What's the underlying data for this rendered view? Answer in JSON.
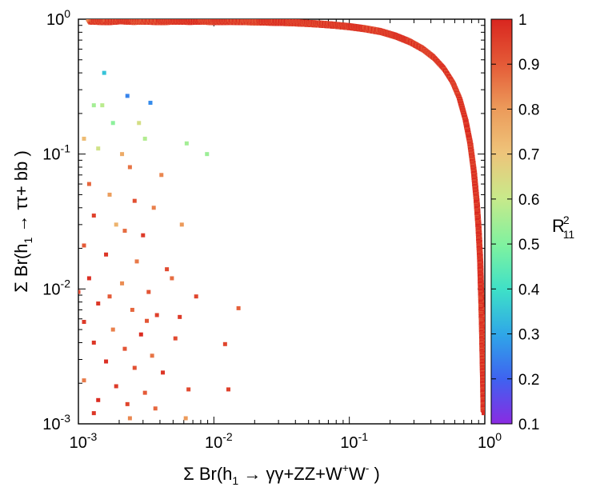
{
  "chart_data": {
    "type": "scatter",
    "x_scale": "log",
    "y_scale": "log",
    "xlim": [
      0.001,
      1
    ],
    "ylim": [
      0.001,
      1
    ],
    "xlabel": {
      "prefix": "Σ Br(h",
      "sub": "1",
      "middle": " → γγ+ZZ+W",
      "sup1": "+",
      "w2": "W",
      "sup2": "-",
      "suffix": " )"
    },
    "ylabel": {
      "prefix": "Σ Br(h",
      "sub": "1",
      "suffix": " → ττ+ bb )"
    },
    "x_ticks": [
      {
        "value": 0.001,
        "base": "10",
        "exp": "-3"
      },
      {
        "value": 0.01,
        "base": "10",
        "exp": "-2"
      },
      {
        "value": 0.1,
        "base": "10",
        "exp": "-1"
      },
      {
        "value": 1,
        "base": "10",
        "exp": "0"
      }
    ],
    "y_ticks": [
      {
        "value": 0.001,
        "base": "10",
        "exp": "-3"
      },
      {
        "value": 0.01,
        "base": "10",
        "exp": "-2"
      },
      {
        "value": 0.1,
        "base": "10",
        "exp": "-1"
      },
      {
        "value": 1,
        "base": "10",
        "exp": "0"
      }
    ],
    "colorbar": {
      "label_base": "R",
      "label_sub": "11",
      "label_sup": "2",
      "range": [
        0.1,
        1
      ],
      "ticks": [
        "0.1",
        "0.2",
        "0.3",
        "0.4",
        "0.5",
        "0.6",
        "0.7",
        "0.8",
        "0.9",
        "1"
      ],
      "palette": [
        "#8a2be2",
        "#3f62f0",
        "#2fa6e8",
        "#3ee0c8",
        "#7ef2a0",
        "#c9e98a",
        "#eec47a",
        "#ec9a5a",
        "#e45a37",
        "#d9261f"
      ]
    },
    "series": [
      {
        "name": "band",
        "description_free": true,
        "points": [
          [
            0.0012,
            0.97,
            0.97
          ],
          [
            0.0016,
            0.96,
            0.92
          ],
          [
            0.002,
            0.975,
            0.98
          ],
          [
            0.0025,
            0.965,
            0.95
          ],
          [
            0.003,
            0.97,
            0.9
          ],
          [
            0.004,
            0.96,
            0.97
          ],
          [
            0.005,
            0.97,
            0.94
          ],
          [
            0.0065,
            0.965,
            0.99
          ],
          [
            0.008,
            0.97,
            0.96
          ],
          [
            0.01,
            0.96,
            0.93
          ],
          [
            0.013,
            0.965,
            0.98
          ],
          [
            0.017,
            0.96,
            0.91
          ],
          [
            0.022,
            0.955,
            0.97
          ],
          [
            0.028,
            0.95,
            0.95
          ],
          [
            0.035,
            0.945,
            0.99
          ],
          [
            0.045,
            0.935,
            0.92
          ],
          [
            0.06,
            0.92,
            0.97
          ],
          [
            0.075,
            0.905,
            0.94
          ],
          [
            0.1,
            0.88,
            0.98
          ],
          [
            0.13,
            0.85,
            0.96
          ],
          [
            0.17,
            0.81,
            0.93
          ],
          [
            0.22,
            0.75,
            0.99
          ],
          [
            0.28,
            0.68,
            0.95
          ],
          [
            0.35,
            0.6,
            0.97
          ],
          [
            0.42,
            0.52,
            0.92
          ],
          [
            0.5,
            0.43,
            0.98
          ],
          [
            0.58,
            0.34,
            0.96
          ],
          [
            0.65,
            0.26,
            0.94
          ],
          [
            0.72,
            0.18,
            0.99
          ],
          [
            0.78,
            0.12,
            0.97
          ],
          [
            0.83,
            0.075,
            0.95
          ],
          [
            0.87,
            0.045,
            0.98
          ],
          [
            0.9,
            0.028,
            0.96
          ],
          [
            0.925,
            0.016,
            0.99
          ],
          [
            0.94,
            0.009,
            0.97
          ],
          [
            0.955,
            0.005,
            0.95
          ],
          [
            0.965,
            0.003,
            0.98
          ],
          [
            0.975,
            0.0018,
            0.96
          ],
          [
            0.98,
            0.0012,
            0.99
          ]
        ]
      },
      {
        "name": "scattered",
        "points": [
          [
            0.00155,
            0.4,
            0.35
          ],
          [
            0.0023,
            0.27,
            0.25
          ],
          [
            0.0034,
            0.24,
            0.26
          ],
          [
            0.0013,
            0.23,
            0.55
          ],
          [
            0.0015,
            0.23,
            0.58
          ],
          [
            0.0018,
            0.17,
            0.52
          ],
          [
            0.0028,
            0.17,
            0.63
          ],
          [
            0.0031,
            0.13,
            0.57
          ],
          [
            0.0063,
            0.12,
            0.55
          ],
          [
            0.0089,
            0.1,
            0.54
          ],
          [
            0.0011,
            0.13,
            0.72
          ],
          [
            0.0014,
            0.11,
            0.62
          ],
          [
            0.0021,
            0.1,
            0.76
          ],
          [
            0.0024,
            0.08,
            0.86
          ],
          [
            0.0041,
            0.07,
            0.83
          ],
          [
            0.0012,
            0.06,
            0.88
          ],
          [
            0.0017,
            0.05,
            0.79
          ],
          [
            0.0026,
            0.045,
            0.92
          ],
          [
            0.0036,
            0.04,
            0.84
          ],
          [
            0.0013,
            0.035,
            0.95
          ],
          [
            0.0019,
            0.03,
            0.74
          ],
          [
            0.0022,
            0.027,
            0.87
          ],
          [
            0.003,
            0.025,
            0.96
          ],
          [
            0.0058,
            0.03,
            0.8
          ],
          [
            0.0011,
            0.021,
            0.9
          ],
          [
            0.0016,
            0.018,
            0.97
          ],
          [
            0.0027,
            0.016,
            0.85
          ],
          [
            0.0045,
            0.014,
            0.93
          ],
          [
            0.0012,
            0.012,
            0.98
          ],
          [
            0.0021,
            0.011,
            0.82
          ],
          [
            0.0033,
            0.0095,
            0.91
          ],
          [
            0.0074,
            0.0088,
            0.94
          ],
          [
            0.0014,
            0.0078,
            0.97
          ],
          [
            0.0025,
            0.007,
            0.88
          ],
          [
            0.0038,
            0.0064,
            0.95
          ],
          [
            0.0152,
            0.0072,
            0.89
          ],
          [
            0.0011,
            0.0057,
            0.96
          ],
          [
            0.0018,
            0.005,
            0.84
          ],
          [
            0.0029,
            0.0046,
            0.99
          ],
          [
            0.0052,
            0.0043,
            0.93
          ],
          [
            0.0013,
            0.004,
            0.97
          ],
          [
            0.0022,
            0.0036,
            0.91
          ],
          [
            0.0035,
            0.0032,
            0.86
          ],
          [
            0.0121,
            0.0039,
            0.94
          ],
          [
            0.0016,
            0.0029,
            0.98
          ],
          [
            0.0026,
            0.0026,
            0.92
          ],
          [
            0.0042,
            0.0024,
            0.97
          ],
          [
            0.0011,
            0.0021,
            0.85
          ],
          [
            0.0019,
            0.0019,
            0.96
          ],
          [
            0.0031,
            0.0017,
            0.9
          ],
          [
            0.0065,
            0.0018,
            0.93
          ],
          [
            0.0014,
            0.0015,
            0.99
          ],
          [
            0.0023,
            0.0014,
            0.94
          ],
          [
            0.0037,
            0.0013,
            0.88
          ],
          [
            0.0128,
            0.0018,
            0.95
          ],
          [
            0.0013,
            0.0012,
            0.97
          ],
          [
            0.0024,
            0.0011,
            0.83
          ],
          [
            0.0062,
            0.0011,
            0.8
          ],
          [
            0.0017,
            0.0088,
            0.9
          ],
          [
            0.0049,
            0.012,
            0.87
          ],
          [
            0.001,
            0.0095,
            0.93
          ],
          [
            0.0032,
            0.0058,
            0.91
          ],
          [
            0.0056,
            0.0062,
            0.96
          ]
        ]
      }
    ]
  }
}
